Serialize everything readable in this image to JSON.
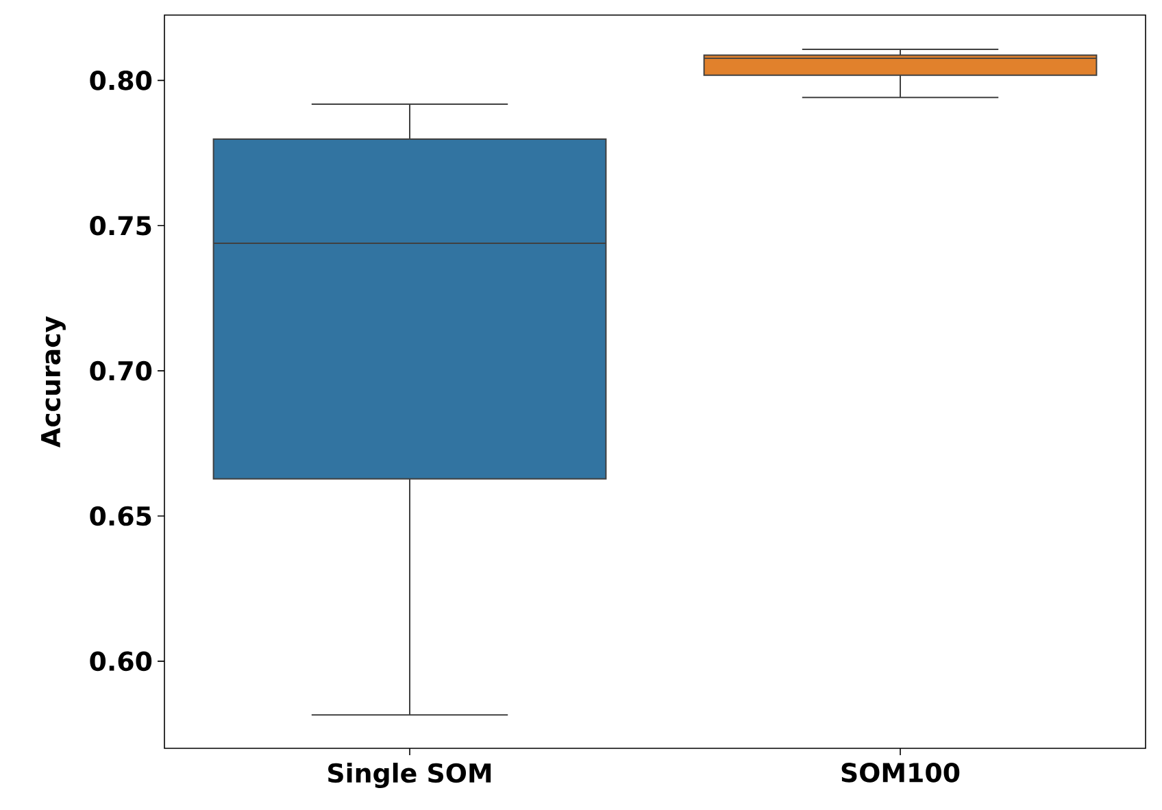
{
  "chart_data": {
    "type": "box",
    "ylabel": "Accuracy",
    "categories": [
      "Single SOM",
      "SOM100"
    ],
    "colors": [
      "#3274a1",
      "#e1812c"
    ],
    "boxes": [
      {
        "low": 0.5815,
        "q1": 0.6628,
        "median": 0.7439,
        "q3": 0.7798,
        "high": 0.7918
      },
      {
        "low": 0.7941,
        "q1": 0.8018,
        "median": 0.8076,
        "q3": 0.8087,
        "high": 0.8107
      }
    ],
    "ylim": [
      0.57,
      0.8225
    ],
    "yticks": [
      {
        "value": 0.6,
        "label": "0.60"
      },
      {
        "value": 0.65,
        "label": "0.65"
      },
      {
        "value": 0.7,
        "label": "0.70"
      },
      {
        "value": 0.75,
        "label": "0.75"
      },
      {
        "value": 0.8,
        "label": "0.80"
      }
    ]
  }
}
